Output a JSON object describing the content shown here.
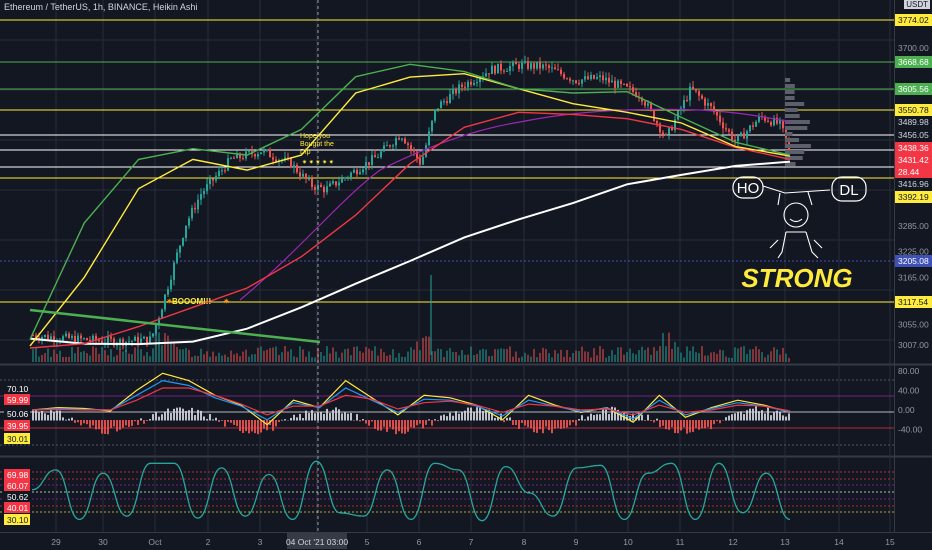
{
  "header": {
    "title": "Ethereum / TetherUS, 1h, BINANCE, Heikin Ashi",
    "currency": "USDT"
  },
  "colors": {
    "bg": "#131722",
    "up": "#26a69a",
    "down": "#ef5350",
    "grid": "#2a2e39",
    "yellow": "#ffeb3b",
    "green": "#4caf50",
    "white": "#ffffff",
    "red": "#f23645",
    "purple": "#9c27b0"
  },
  "annotations": {
    "hope": [
      "Hope you",
      "Bought the",
      "Dip"
    ],
    "boom": "BOOOM!!!",
    "ho": "HO",
    "dl": "DL",
    "strong": "STRONG"
  },
  "chart_data": [
    {
      "type": "candlestick",
      "title": "Ethereum / TetherUS, 1h, BINANCE, Heikin Ashi",
      "x_labels": [
        "29",
        "30",
        "Oct",
        "2",
        "3",
        "04 Oct '21  03:00",
        "5",
        "6",
        "7",
        "8",
        "9",
        "10",
        "11",
        "12",
        "13",
        "14",
        "15"
      ],
      "y_ticks": [
        3007.0,
        3055.0,
        3165.0,
        3225.0,
        3285.0,
        3700.0
      ],
      "price_labels": [
        {
          "value": "3774.02",
          "color": "#ffeb3b"
        },
        {
          "value": "3668.68",
          "color": "#4caf50"
        },
        {
          "value": "3605.56",
          "color": "#4caf50"
        },
        {
          "value": "3550.78",
          "color": "#ffeb3b"
        },
        {
          "value": "3489.98",
          "color": "#ffffff"
        },
        {
          "value": "3456.05",
          "color": "#ffffff"
        },
        {
          "value": "3438.36",
          "color": "#f23645"
        },
        {
          "value": "3431.42",
          "color": "#f23645"
        },
        {
          "value": "28.44",
          "color": "#f23645"
        },
        {
          "value": "3416.96",
          "color": "#ffffff"
        },
        {
          "value": "3392.19",
          "color": "#ffeb3b"
        },
        {
          "value": "3205.08",
          "color": "#3f51b5"
        },
        {
          "value": "3117.54",
          "color": "#ffeb3b"
        }
      ],
      "ylim": [
        3000,
        3790
      ],
      "series": [
        {
          "name": "",
          "color": "#ffffff",
          "values": [
            3022,
            3010,
            3009,
            3015,
            3045,
            3095,
            3150,
            3203,
            3258,
            3300,
            3338,
            3382,
            3404,
            3425,
            3435
          ]
        },
        {
          "name": "",
          "color": "#f23645",
          "values": [
            3000,
            3010,
            3050,
            3095,
            3140,
            3213,
            3310,
            3430,
            3515,
            3550,
            3545,
            3535,
            3510,
            3468,
            3440
          ]
        },
        {
          "name": "",
          "color": "#ffeb3b",
          "values": [
            3005,
            3165,
            3372,
            3440,
            3415,
            3450,
            3595,
            3632,
            3640,
            3605,
            3570,
            3550,
            3525,
            3470,
            3448
          ]
        },
        {
          "name": "",
          "color": "#4caf50",
          "values": [
            3020,
            3292,
            3440,
            3465,
            3450,
            3510,
            3633,
            3662,
            3645,
            3605,
            3595,
            3598,
            3538,
            3480,
            3450
          ]
        }
      ],
      "grid": true
    },
    {
      "type": "line",
      "title": "",
      "y_ticks": [
        80.0,
        40.0,
        0.0,
        -40.0
      ],
      "level_labels": [
        {
          "value": "70.10",
          "color": "#ffffff"
        },
        {
          "value": "59.99",
          "color": "#f23645"
        },
        {
          "value": "50.06",
          "color": "#ffffff"
        },
        {
          "value": "39.95",
          "color": "#f23645"
        },
        {
          "value": "30.01",
          "color": "#ffeb3b"
        }
      ],
      "series": [
        {
          "name": "",
          "color": "#ffeb3b",
          "values": [
            0,
            5,
            3,
            -2,
            40,
            75,
            60,
            30,
            10,
            -30,
            20,
            5,
            60,
            25,
            -10,
            30,
            25,
            10,
            -20,
            30,
            10,
            -5,
            5,
            -25,
            30,
            -15,
            5,
            20,
            10,
            -5
          ]
        },
        {
          "name": "",
          "color": "#2196f3",
          "values": [
            0,
            3,
            1,
            0,
            30,
            60,
            50,
            25,
            8,
            -20,
            15,
            5,
            45,
            20,
            -5,
            22,
            20,
            8,
            -12,
            20,
            8,
            -3,
            4,
            -18,
            20,
            -10,
            3,
            15,
            8,
            -4
          ]
        },
        {
          "name": "",
          "color": "#f23645",
          "values": [
            0,
            1,
            0,
            0,
            20,
            45,
            45,
            30,
            12,
            -10,
            8,
            8,
            30,
            22,
            2,
            15,
            18,
            10,
            -5,
            12,
            8,
            0,
            2,
            -10,
            10,
            -5,
            0,
            10,
            8,
            -2
          ]
        }
      ]
    },
    {
      "type": "line",
      "title": "",
      "level_labels": [
        {
          "value": "69.98",
          "color": "#f23645"
        },
        {
          "value": "60.07",
          "color": "#f23645"
        },
        {
          "value": "50.62",
          "color": "#ffffff"
        },
        {
          "value": "40.01",
          "color": "#f23645"
        },
        {
          "value": "30.10",
          "color": "#ffeb3b"
        }
      ],
      "series": [
        {
          "name": "",
          "color": "#26a69a",
          "values": [
            55,
            85,
            10,
            80,
            15,
            95,
            95,
            12,
            88,
            15,
            78,
            10,
            98,
            20,
            15,
            85,
            10,
            95,
            85,
            8,
            90,
            50,
            15,
            88,
            92,
            10,
            80,
            95,
            10,
            95,
            20,
            80,
            10
          ]
        }
      ]
    }
  ]
}
